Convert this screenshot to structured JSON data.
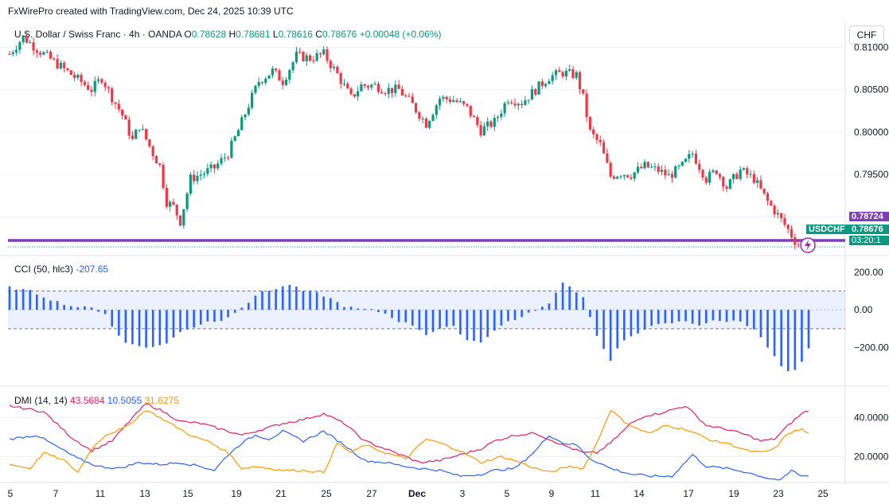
{
  "header": {
    "attribution": "FxWirePro created with TradingView.com, Dec 24, 2025 10:39 UTC"
  },
  "legend": {
    "symbol": "U.S. Dollar / Swiss Franc · 4h · OANDA",
    "o_label": "O",
    "o": "0.78628",
    "h_label": "H",
    "h": "0.78681",
    "l_label": "L",
    "l": "0.78616",
    "c_label": "C",
    "c": "0.78676",
    "change": "+0.00048 (+0.06%)"
  },
  "currency_button": "CHF",
  "tags": {
    "level_price": "0.78724",
    "symbol": "USDCHF",
    "last_price": "0.78676",
    "countdown": "03:20:1"
  },
  "colors": {
    "up": "#089981",
    "down": "#f23645",
    "level": "#7e3fbd",
    "cci": "#2962ff",
    "di_plus": "#e91e63",
    "di_minus": "#2962ff",
    "adx": "#ff9800"
  },
  "chart_data": [
    {
      "type": "candlestick",
      "title": "U.S. Dollar / Swiss Franc · 4h · OANDA",
      "y_ticks": [
        "0.81000",
        "0.80500",
        "0.80000",
        "0.79500",
        "0.79000"
      ],
      "ylim": [
        0.7848,
        0.8135
      ],
      "horizontal_level": 0.78724,
      "last_price": 0.78676,
      "x_ticks": [
        "5",
        "7",
        "11",
        "13",
        "15",
        "19",
        "21",
        "25",
        "27",
        "Dec",
        "3",
        "5",
        "9",
        "11",
        "14",
        "17",
        "19",
        "23",
        "25"
      ],
      "close_path": [
        [
          0,
          0.8092
        ],
        [
          4,
          0.8112
        ],
        [
          8,
          0.8098
        ],
        [
          14,
          0.808
        ],
        [
          20,
          0.8062
        ],
        [
          24,
          0.805
        ],
        [
          27,
          0.8064
        ],
        [
          30,
          0.8041
        ],
        [
          33,
          0.802
        ],
        [
          36,
          0.799
        ],
        [
          38,
          0.8008
        ],
        [
          42,
          0.7975
        ],
        [
          44,
          0.796
        ],
        [
          46,
          0.7918
        ],
        [
          48,
          0.7912
        ],
        [
          50,
          0.7895
        ],
        [
          53,
          0.7945
        ],
        [
          57,
          0.7952
        ],
        [
          60,
          0.7958
        ],
        [
          64,
          0.7975
        ],
        [
          67,
          0.8002
        ],
        [
          70,
          0.8032
        ],
        [
          73,
          0.806
        ],
        [
          77,
          0.8072
        ],
        [
          80,
          0.806
        ],
        [
          84,
          0.809
        ],
        [
          88,
          0.8087
        ],
        [
          92,
          0.8092
        ],
        [
          96,
          0.8068
        ],
        [
          100,
          0.804
        ],
        [
          103,
          0.8055
        ],
        [
          107,
          0.8055
        ],
        [
          110,
          0.805
        ],
        [
          114,
          0.805
        ],
        [
          118,
          0.8032
        ],
        [
          122,
          0.801
        ],
        [
          126,
          0.804
        ],
        [
          130,
          0.8038
        ],
        [
          134,
          0.8028
        ],
        [
          138,
          0.8002
        ],
        [
          142,
          0.8012
        ],
        [
          146,
          0.804
        ],
        [
          150,
          0.8035
        ],
        [
          154,
          0.805
        ],
        [
          158,
          0.8065
        ],
        [
          162,
          0.807
        ],
        [
          166,
          0.8067
        ],
        [
          168,
          0.804
        ],
        [
          170,
          0.8
        ],
        [
          173,
          0.7985
        ],
        [
          176,
          0.7948
        ],
        [
          179,
          0.7952
        ],
        [
          182,
          0.795
        ],
        [
          186,
          0.796
        ],
        [
          190,
          0.7955
        ],
        [
          193,
          0.7948
        ],
        [
          197,
          0.796
        ],
        [
          200,
          0.7975
        ],
        [
          204,
          0.7945
        ],
        [
          207,
          0.7955
        ],
        [
          210,
          0.7935
        ],
        [
          214,
          0.7955
        ],
        [
          218,
          0.7945
        ],
        [
          222,
          0.7918
        ],
        [
          225,
          0.7902
        ],
        [
          228,
          0.7885
        ],
        [
          230,
          0.7872
        ],
        [
          232,
          0.7863
        ],
        [
          234,
          0.7868
        ]
      ]
    },
    {
      "type": "bar",
      "title": "CCI (50, hlc3)",
      "current_value": -207.65,
      "y_ticks": [
        "200.00",
        "0.00",
        "−200.00"
      ],
      "ylim": [
        -350,
        250
      ],
      "bands": [
        100,
        -100
      ],
      "path": [
        [
          0,
          120
        ],
        [
          6,
          100
        ],
        [
          12,
          55
        ],
        [
          18,
          20
        ],
        [
          24,
          10
        ],
        [
          28,
          -20
        ],
        [
          31,
          -120
        ],
        [
          34,
          -175
        ],
        [
          38,
          -190
        ],
        [
          42,
          -200
        ],
        [
          46,
          -175
        ],
        [
          50,
          -120
        ],
        [
          54,
          -90
        ],
        [
          58,
          -60
        ],
        [
          62,
          -60
        ],
        [
          66,
          -10
        ],
        [
          70,
          40
        ],
        [
          74,
          100
        ],
        [
          78,
          110
        ],
        [
          82,
          135
        ],
        [
          86,
          100
        ],
        [
          90,
          90
        ],
        [
          94,
          60
        ],
        [
          98,
          20
        ],
        [
          102,
          5
        ],
        [
          106,
          0
        ],
        [
          110,
          -20
        ],
        [
          114,
          -60
        ],
        [
          118,
          -80
        ],
        [
          122,
          -130
        ],
        [
          126,
          -100
        ],
        [
          130,
          -90
        ],
        [
          134,
          -160
        ],
        [
          138,
          -170
        ],
        [
          142,
          -110
        ],
        [
          146,
          -60
        ],
        [
          150,
          -40
        ],
        [
          154,
          0
        ],
        [
          158,
          30
        ],
        [
          162,
          150
        ],
        [
          165,
          110
        ],
        [
          168,
          70
        ],
        [
          170,
          -40
        ],
        [
          173,
          -180
        ],
        [
          176,
          -270
        ],
        [
          179,
          -180
        ],
        [
          182,
          -140
        ],
        [
          186,
          -100
        ],
        [
          190,
          -80
        ],
        [
          194,
          -70
        ],
        [
          198,
          -60
        ],
        [
          202,
          -80
        ],
        [
          206,
          -60
        ],
        [
          210,
          -60
        ],
        [
          214,
          -60
        ],
        [
          218,
          -100
        ],
        [
          222,
          -200
        ],
        [
          226,
          -300
        ],
        [
          229,
          -345
        ],
        [
          232,
          -280
        ],
        [
          234,
          -208
        ]
      ]
    },
    {
      "type": "line",
      "title": "DMI (14, 14)",
      "y_ticks": [
        "40.0000",
        "20.0000"
      ],
      "ylim": [
        8,
        52
      ],
      "series": [
        {
          "name": "43.5684",
          "color": "#e91e63",
          "values": [
            [
              0,
              46
            ],
            [
              10,
              43
            ],
            [
              18,
              30
            ],
            [
              24,
              23
            ],
            [
              30,
              28
            ],
            [
              36,
              40
            ],
            [
              40,
              47
            ],
            [
              44,
              44
            ],
            [
              50,
              38
            ],
            [
              56,
              37
            ],
            [
              62,
              34
            ],
            [
              68,
              31
            ],
            [
              74,
              34
            ],
            [
              80,
              37
            ],
            [
              86,
              39
            ],
            [
              92,
              42
            ],
            [
              98,
              37
            ],
            [
              104,
              28
            ],
            [
              110,
              24
            ],
            [
              116,
              20
            ],
            [
              120,
              17
            ],
            [
              126,
              18
            ],
            [
              132,
              21
            ],
            [
              138,
              24
            ],
            [
              142,
              28
            ],
            [
              148,
              31
            ],
            [
              154,
              32
            ],
            [
              158,
              29
            ],
            [
              162,
              26
            ],
            [
              168,
              22
            ],
            [
              172,
              22
            ],
            [
              176,
              27
            ],
            [
              182,
              37
            ],
            [
              186,
              41
            ],
            [
              190,
              42
            ],
            [
              194,
              44
            ],
            [
              198,
              46
            ],
            [
              204,
              36
            ],
            [
              210,
              34
            ],
            [
              216,
              31
            ],
            [
              220,
              28
            ],
            [
              224,
              29
            ],
            [
              228,
              36
            ],
            [
              232,
              42
            ],
            [
              234,
              43.6
            ]
          ]
        },
        {
          "name": "10.5055",
          "color": "#2962ff",
          "values": [
            [
              0,
              29
            ],
            [
              8,
              31
            ],
            [
              14,
              25
            ],
            [
              20,
              19
            ],
            [
              26,
              15
            ],
            [
              32,
              14
            ],
            [
              38,
              17
            ],
            [
              44,
              16
            ],
            [
              50,
              17
            ],
            [
              56,
              15
            ],
            [
              60,
              13
            ],
            [
              64,
              21
            ],
            [
              68,
              27
            ],
            [
              72,
              31
            ],
            [
              76,
              29
            ],
            [
              80,
              33
            ],
            [
              86,
              28
            ],
            [
              92,
              33
            ],
            [
              98,
              26
            ],
            [
              104,
              18
            ],
            [
              110,
              17
            ],
            [
              116,
              15
            ],
            [
              120,
              14
            ],
            [
              126,
              13
            ],
            [
              132,
              10
            ],
            [
              138,
              11
            ],
            [
              142,
              13
            ],
            [
              148,
              14
            ],
            [
              154,
              23
            ],
            [
              158,
              31
            ],
            [
              162,
              27
            ],
            [
              166,
              26
            ],
            [
              170,
              19
            ],
            [
              176,
              14
            ],
            [
              182,
              11
            ],
            [
              188,
              10
            ],
            [
              194,
              10
            ],
            [
              200,
              21
            ],
            [
              204,
              15
            ],
            [
              210,
              14
            ],
            [
              216,
              12
            ],
            [
              222,
              9
            ],
            [
              226,
              8
            ],
            [
              229,
              13
            ],
            [
              232,
              10
            ],
            [
              234,
              10.5
            ]
          ]
        },
        {
          "name": "31.6275",
          "color": "#ff9800",
          "values": [
            [
              0,
              16
            ],
            [
              6,
              14
            ],
            [
              10,
              22
            ],
            [
              16,
              18
            ],
            [
              20,
              12
            ],
            [
              24,
              24
            ],
            [
              28,
              31
            ],
            [
              34,
              35
            ],
            [
              40,
              44
            ],
            [
              44,
              40
            ],
            [
              48,
              36
            ],
            [
              54,
              30
            ],
            [
              58,
              28
            ],
            [
              64,
              22
            ],
            [
              68,
              14
            ],
            [
              72,
              15
            ],
            [
              76,
              14
            ],
            [
              80,
              13
            ],
            [
              86,
              13
            ],
            [
              92,
              12
            ],
            [
              96,
              27
            ],
            [
              100,
              22
            ],
            [
              104,
              26
            ],
            [
              110,
              22
            ],
            [
              116,
              19
            ],
            [
              122,
              29
            ],
            [
              126,
              27
            ],
            [
              132,
              23
            ],
            [
              138,
              17
            ],
            [
              144,
              20
            ],
            [
              148,
              18
            ],
            [
              154,
              14
            ],
            [
              158,
              12
            ],
            [
              164,
              15
            ],
            [
              168,
              14
            ],
            [
              172,
              27
            ],
            [
              176,
              44
            ],
            [
              180,
              38
            ],
            [
              184,
              34
            ],
            [
              188,
              32
            ],
            [
              192,
              36
            ],
            [
              198,
              34
            ],
            [
              202,
              31
            ],
            [
              206,
              28
            ],
            [
              210,
              27
            ],
            [
              216,
              23
            ],
            [
              220,
              22
            ],
            [
              224,
              24
            ],
            [
              228,
              32
            ],
            [
              232,
              34
            ],
            [
              234,
              31.6
            ]
          ]
        }
      ]
    }
  ]
}
